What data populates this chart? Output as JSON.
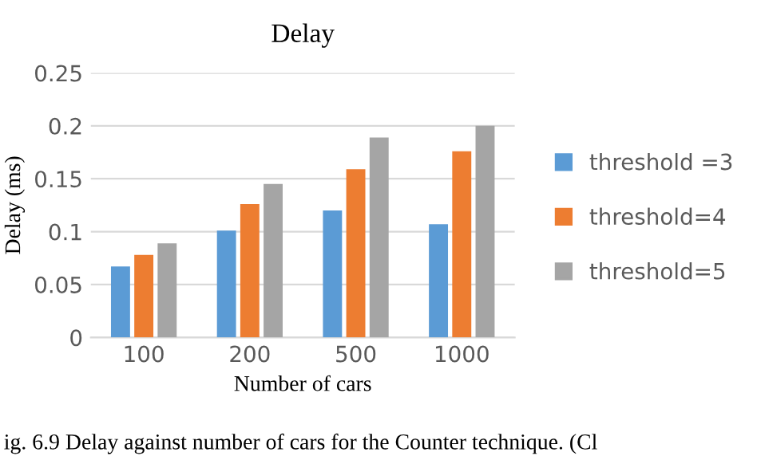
{
  "chart_data": {
    "type": "bar",
    "title": "Delay",
    "xlabel": "Number of cars",
    "ylabel": "Delay (ms)",
    "categories": [
      "100",
      "200",
      "500",
      "1000"
    ],
    "series": [
      {
        "name": "threshold =3",
        "color": "#5b9bd5",
        "values": [
          0.067,
          0.101,
          0.12,
          0.107
        ]
      },
      {
        "name": "threshold=4",
        "color": "#ed7d31",
        "values": [
          0.078,
          0.126,
          0.159,
          0.176
        ]
      },
      {
        "name": "threshold=5",
        "color": "#a5a5a5",
        "values": [
          0.089,
          0.145,
          0.189,
          0.2
        ]
      }
    ],
    "ylim": [
      0,
      0.25
    ],
    "yticks": [
      0,
      0.05,
      0.1,
      0.15,
      0.2,
      0.25
    ],
    "grid": "y",
    "legend": "right",
    "annotations": [
      "ig. 6.9 Delay against number of cars for the Counter technique. (Cl"
    ]
  }
}
